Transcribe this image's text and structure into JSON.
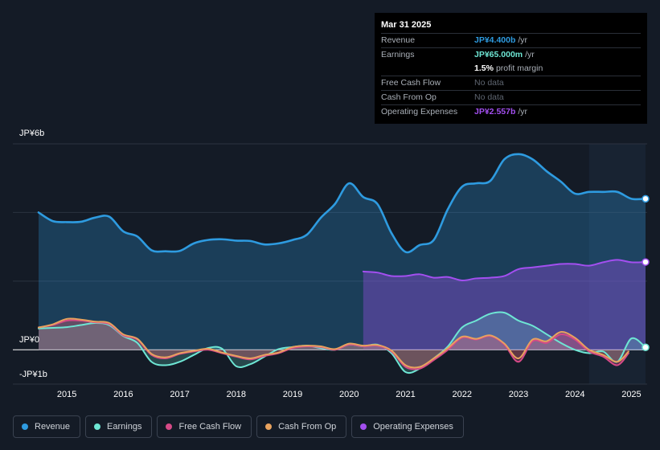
{
  "tooltip": {
    "date": "Mar 31 2025",
    "rows": [
      {
        "label": "Revenue",
        "value": "JP¥4.400b",
        "unit": "/yr",
        "color": "#2e9be0"
      },
      {
        "label": "Earnings",
        "value": "JP¥65.000m",
        "unit": "/yr",
        "color": "#6ee6d4"
      },
      {
        "label": "",
        "value": "1.5%",
        "unit": "profit margin",
        "color": "#ffffff"
      },
      {
        "label": "Free Cash Flow",
        "value": "No data",
        "unit": "",
        "color": "#5e6570"
      },
      {
        "label": "Cash From Op",
        "value": "No data",
        "unit": "",
        "color": "#5e6570"
      },
      {
        "label": "Operating Expenses",
        "value": "JP¥2.557b",
        "unit": "/yr",
        "color": "#a34ff0"
      }
    ]
  },
  "legend": [
    {
      "label": "Revenue",
      "color": "#2e9be0"
    },
    {
      "label": "Earnings",
      "color": "#6ee6d4"
    },
    {
      "label": "Free Cash Flow",
      "color": "#d64a87"
    },
    {
      "label": "Cash From Op",
      "color": "#e8a25e"
    },
    {
      "label": "Operating Expenses",
      "color": "#a34ff0"
    }
  ],
  "chart_data": {
    "type": "line",
    "title": "",
    "xlabel": "",
    "ylabel": "",
    "xlim": [
      2014.5,
      2025.25
    ],
    "ylim": [
      -1,
      6
    ],
    "y_tick_labels": [
      "JP¥6b",
      "JP¥0",
      "-JP¥1b"
    ],
    "x_tick_labels": [
      "2015",
      "2016",
      "2017",
      "2018",
      "2019",
      "2020",
      "2021",
      "2022",
      "2023",
      "2024",
      "2025"
    ],
    "highlight_from": 2024.25,
    "series": [
      {
        "name": "Revenue",
        "color": "#2e9be0",
        "x": [
          2014.5,
          2014.75,
          2015,
          2015.25,
          2015.5,
          2015.75,
          2016,
          2016.25,
          2016.5,
          2016.75,
          2017,
          2017.25,
          2017.5,
          2017.75,
          2018,
          2018.25,
          2018.5,
          2018.75,
          2019,
          2019.25,
          2019.5,
          2019.75,
          2020,
          2020.25,
          2020.5,
          2020.75,
          2021,
          2021.25,
          2021.5,
          2021.75,
          2022,
          2022.25,
          2022.5,
          2022.75,
          2023,
          2023.25,
          2023.5,
          2023.75,
          2024,
          2024.25,
          2024.5,
          2024.75,
          2025,
          2025.25
        ],
        "y": [
          4.0,
          3.75,
          3.72,
          3.73,
          3.85,
          3.88,
          3.45,
          3.3,
          2.9,
          2.87,
          2.88,
          3.1,
          3.2,
          3.22,
          3.18,
          3.17,
          3.07,
          3.1,
          3.2,
          3.35,
          3.85,
          4.25,
          4.85,
          4.45,
          4.25,
          3.4,
          2.85,
          3.05,
          3.2,
          4.1,
          4.75,
          4.85,
          4.92,
          5.55,
          5.7,
          5.55,
          5.2,
          4.9,
          4.55,
          4.6,
          4.6,
          4.6,
          4.4,
          4.4
        ]
      },
      {
        "name": "Earnings",
        "color": "#6ee6d4",
        "x": [
          2014.5,
          2014.75,
          2015,
          2015.25,
          2015.5,
          2015.75,
          2016,
          2016.25,
          2016.5,
          2016.75,
          2017,
          2017.25,
          2017.5,
          2017.75,
          2018,
          2018.25,
          2018.5,
          2018.75,
          2019,
          2019.25,
          2019.5,
          2019.75,
          2020,
          2020.25,
          2020.5,
          2020.75,
          2021,
          2021.25,
          2021.5,
          2021.75,
          2022,
          2022.25,
          2022.5,
          2022.75,
          2023,
          2023.25,
          2023.5,
          2023.75,
          2024,
          2024.25,
          2024.5,
          2024.75,
          2025,
          2025.25
        ],
        "y": [
          0.62,
          0.64,
          0.66,
          0.72,
          0.78,
          0.72,
          0.4,
          0.2,
          -0.35,
          -0.45,
          -0.35,
          -0.15,
          0.05,
          0.03,
          -0.48,
          -0.42,
          -0.2,
          0.02,
          0.08,
          0.12,
          0.05,
          0.0,
          0.15,
          0.1,
          0.15,
          -0.1,
          -0.65,
          -0.55,
          -0.25,
          0.1,
          0.65,
          0.85,
          1.05,
          1.08,
          0.85,
          0.7,
          0.45,
          0.2,
          0.0,
          -0.1,
          -0.05,
          -0.35,
          0.33,
          0.07
        ]
      },
      {
        "name": "Free Cash Flow",
        "color": "#d64a87",
        "x": [
          2014.5,
          2014.75,
          2015,
          2015.25,
          2015.5,
          2015.75,
          2016,
          2016.25,
          2016.5,
          2016.75,
          2017,
          2017.25,
          2017.5,
          2017.75,
          2018,
          2018.25,
          2018.5,
          2018.75,
          2019,
          2019.25,
          2019.5,
          2019.75,
          2020,
          2020.25,
          2020.5,
          2020.75,
          2021,
          2021.25,
          2021.5,
          2021.75,
          2022,
          2022.25,
          2022.5,
          2022.75,
          2023,
          2023.25,
          2023.5,
          2023.75,
          2024,
          2024.25,
          2024.5,
          2024.75,
          2024.95
        ],
        "y": [
          0.65,
          0.72,
          0.85,
          0.85,
          0.8,
          0.75,
          0.42,
          0.3,
          -0.15,
          -0.25,
          -0.12,
          -0.05,
          0.0,
          -0.1,
          -0.2,
          -0.28,
          -0.18,
          -0.1,
          0.05,
          0.1,
          0.08,
          0.0,
          0.15,
          0.1,
          0.12,
          -0.05,
          -0.5,
          -0.55,
          -0.3,
          0.0,
          0.35,
          0.3,
          0.4,
          0.15,
          -0.35,
          0.25,
          0.2,
          0.45,
          0.3,
          -0.05,
          -0.2,
          -0.45,
          -0.1
        ]
      },
      {
        "name": "Cash From Op",
        "color": "#e8a25e",
        "x": [
          2014.5,
          2014.75,
          2015,
          2015.25,
          2015.5,
          2015.75,
          2016,
          2016.25,
          2016.5,
          2016.75,
          2017,
          2017.25,
          2017.5,
          2017.75,
          2018,
          2018.25,
          2018.5,
          2018.75,
          2019,
          2019.25,
          2019.5,
          2019.75,
          2020,
          2020.25,
          2020.5,
          2020.75,
          2021,
          2021.25,
          2021.5,
          2021.75,
          2022,
          2022.25,
          2022.5,
          2022.75,
          2023,
          2023.25,
          2023.5,
          2023.75,
          2024,
          2024.25,
          2024.5,
          2024.75,
          2024.95
        ],
        "y": [
          0.65,
          0.74,
          0.9,
          0.88,
          0.82,
          0.78,
          0.45,
          0.32,
          -0.12,
          -0.22,
          -0.1,
          -0.03,
          0.03,
          -0.08,
          -0.18,
          -0.25,
          -0.15,
          -0.08,
          0.08,
          0.12,
          0.1,
          0.02,
          0.18,
          0.12,
          0.14,
          -0.02,
          -0.45,
          -0.5,
          -0.25,
          0.05,
          0.38,
          0.32,
          0.42,
          0.18,
          -0.25,
          0.3,
          0.25,
          0.52,
          0.35,
          0.0,
          -0.15,
          -0.35,
          -0.05
        ]
      },
      {
        "name": "Operating Expenses",
        "color": "#a34ff0",
        "x": [
          2020.25,
          2020.5,
          2020.75,
          2021,
          2021.25,
          2021.5,
          2021.75,
          2022,
          2022.25,
          2022.5,
          2022.75,
          2023,
          2023.25,
          2023.5,
          2023.75,
          2024,
          2024.25,
          2024.5,
          2024.75,
          2025,
          2025.25
        ],
        "y": [
          2.28,
          2.25,
          2.15,
          2.15,
          2.2,
          2.1,
          2.12,
          2.02,
          2.08,
          2.1,
          2.15,
          2.35,
          2.4,
          2.45,
          2.5,
          2.5,
          2.45,
          2.55,
          2.62,
          2.55,
          2.557
        ]
      }
    ]
  }
}
